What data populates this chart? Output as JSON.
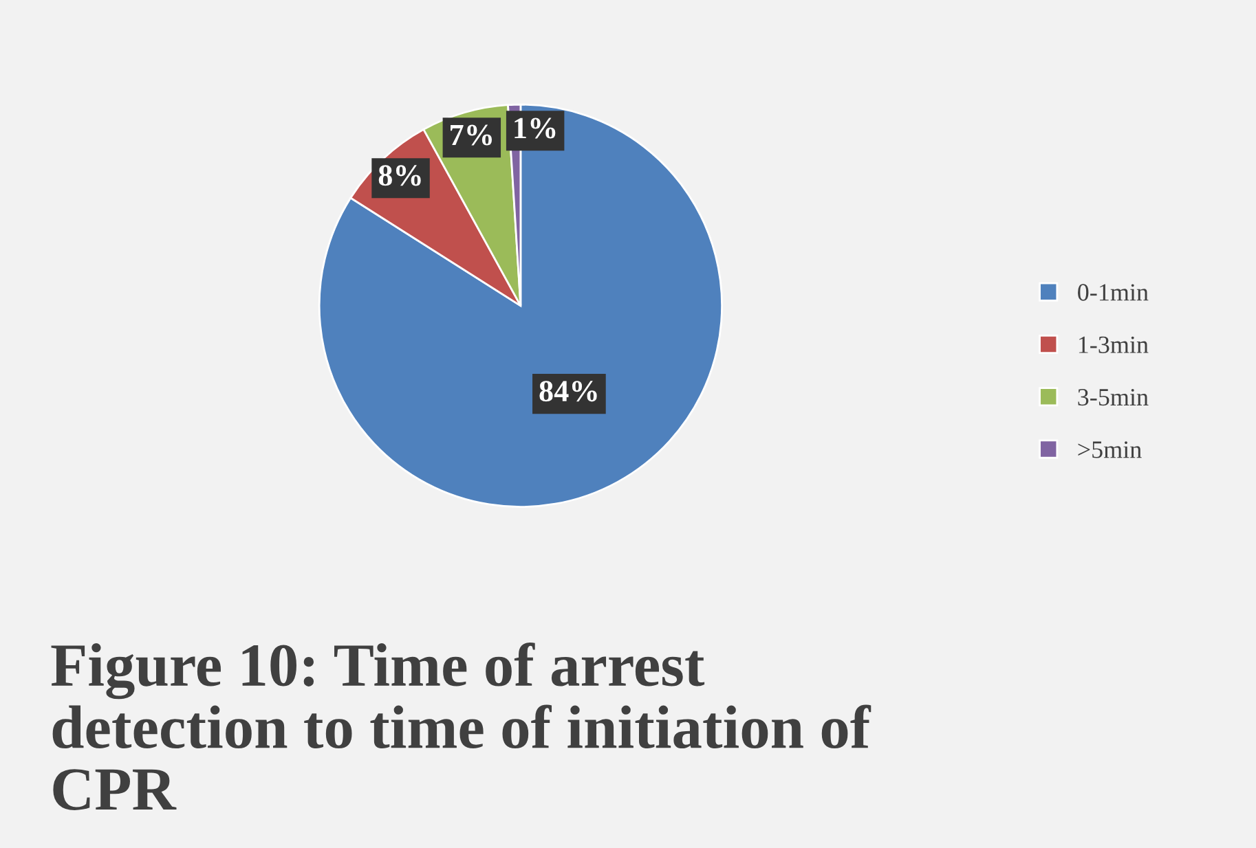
{
  "chart_data": {
    "type": "pie",
    "title": "Figure 10: Time of arrest\ndetection to time of initiation of\nCPR",
    "categories": [
      "0-1min",
      "1-3min",
      "3-5min",
      ">5min"
    ],
    "values": [
      84,
      8,
      7,
      1
    ],
    "colors": [
      "#4f81bd",
      "#c0504d",
      "#9bbb59",
      "#8064a2"
    ],
    "value_labels": [
      "84%",
      "8%",
      "7%",
      "1%"
    ],
    "legend": "right"
  }
}
